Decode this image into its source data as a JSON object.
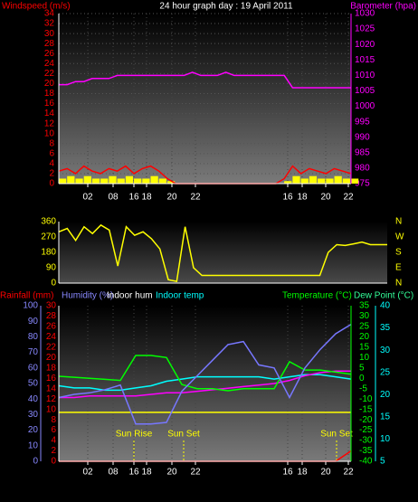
{
  "chart_data": [
    {
      "type": "line",
      "title": "24 hour graph day : 19 April 2011",
      "y_label": "Windspeed (m/s)",
      "y2_label": "Barometer (hpa)",
      "xtick_labels": [
        "02",
        "08",
        "16",
        "18",
        "20",
        "22",
        "16",
        "18",
        "20",
        "22"
      ],
      "ylim": [
        0,
        34
      ],
      "yticks": [
        0,
        2,
        4,
        6,
        8,
        10,
        12,
        14,
        16,
        18,
        20,
        22,
        24,
        26,
        28,
        30,
        32,
        34
      ],
      "y2lim": [
        975,
        1030
      ],
      "y2ticks": [
        975,
        980,
        985,
        990,
        995,
        1000,
        1005,
        1010,
        1015,
        1020,
        1025,
        1030
      ],
      "grid": true,
      "y_color": "#ff0000",
      "y2_color": "#ff00ff",
      "series": [
        {
          "color": "#ffff00",
          "kind": "bar",
          "values": [
            1,
            1.5,
            1,
            1.5,
            1,
            1,
            1.5,
            1,
            1.5,
            1,
            1,
            1.5,
            1,
            0.5,
            0,
            0,
            0,
            0,
            0,
            0,
            0,
            0,
            0,
            0,
            0,
            0,
            0,
            0.5,
            1.5,
            1,
            1.5,
            1,
            1,
            1.5,
            1,
            1
          ]
        },
        {
          "color": "#ff0000",
          "values": [
            2.5,
            3,
            2,
            3.5,
            2.5,
            2,
            3,
            2.5,
            3.5,
            2,
            3,
            3.5,
            2.5,
            1,
            0,
            0,
            0,
            0,
            0,
            0,
            0,
            0,
            0,
            0,
            0,
            0,
            0,
            1,
            3.5,
            2,
            3,
            2.5,
            2,
            3,
            2.5,
            2
          ]
        },
        {
          "color": "#ff00ff",
          "axis": "y2",
          "values": [
            1007,
            1007,
            1008,
            1008,
            1009,
            1009,
            1009,
            1010,
            1010,
            1010,
            1010,
            1010,
            1010,
            1010,
            1010,
            1010,
            1011,
            1010,
            1010,
            1010,
            1011,
            1010,
            1010,
            1010,
            1010,
            1010,
            1010,
            1010,
            1006,
            1006,
            1006,
            1006,
            1006,
            1006,
            1006,
            1006
          ]
        }
      ]
    },
    {
      "type": "line",
      "ylim": [
        0,
        360
      ],
      "yticks": [
        0,
        90,
        180,
        270,
        360
      ],
      "compass_labels": [
        "N",
        "W",
        "S",
        "E",
        "N"
      ],
      "y_color": "#ffff00",
      "series": [
        {
          "color": "#ffff00",
          "values": [
            300,
            320,
            250,
            330,
            290,
            340,
            310,
            100,
            330,
            280,
            300,
            260,
            200,
            20,
            10,
            330,
            90,
            45,
            45,
            45,
            45,
            45,
            45,
            45,
            45,
            45,
            45,
            45,
            45,
            45,
            45,
            45,
            180,
            225,
            220,
            230,
            240,
            225,
            225,
            225
          ]
        }
      ]
    },
    {
      "type": "line",
      "y_label": "Rainfall (mm)",
      "humidity_label": "Humidity (%)",
      "indoor_hum_label": "Indoor hum",
      "indoor_temp_label": "Indoor temp",
      "y2_label": "Temperature (°C)",
      "y3_label": "Dew Point (°C)",
      "xtick_labels": [
        "02",
        "08",
        "16",
        "18",
        "20",
        "22",
        "16",
        "18",
        "20",
        "22"
      ],
      "ylim": [
        0,
        30
      ],
      "yticks": [
        0,
        2,
        4,
        6,
        8,
        10,
        12,
        14,
        16,
        18,
        20,
        22,
        24,
        26,
        28,
        30
      ],
      "humidity_lim": [
        0,
        100
      ],
      "humidity_ticks": [
        0,
        10,
        20,
        30,
        40,
        50,
        60,
        70,
        80,
        90,
        100
      ],
      "y2lim": [
        -40,
        35
      ],
      "y2ticks": [
        -40,
        -35,
        -30,
        -25,
        -20,
        -15,
        -10,
        -5,
        0,
        5,
        10,
        15,
        20,
        25,
        30,
        35
      ],
      "y3lim": [
        5,
        40
      ],
      "y3ticks": [
        5,
        10,
        15,
        20,
        25,
        30,
        35,
        40
      ],
      "annotations": [
        "Sun Rise",
        "Sun Set",
        "Sun Set"
      ],
      "series": [
        {
          "color": "#ffff00",
          "axis": "y3",
          "values": [
            16,
            16,
            16,
            16,
            16,
            16,
            16,
            16,
            16,
            16,
            16,
            16,
            16,
            16,
            16,
            16,
            16,
            16,
            16,
            16
          ]
        },
        {
          "color": "#00ffff",
          "axis": "y3",
          "values": [
            22,
            21.5,
            21.5,
            21,
            21,
            21.5,
            22,
            23,
            23.5,
            24,
            24,
            24,
            24,
            24,
            23.5,
            24,
            24.5,
            24.5,
            24,
            23.5
          ]
        },
        {
          "color": "#ff00ff",
          "axis": "humidity",
          "values": [
            41,
            41,
            42,
            42,
            42,
            42,
            43,
            44,
            44,
            45,
            46,
            47,
            48,
            49,
            50,
            52,
            55,
            57,
            58,
            58
          ]
        },
        {
          "color": "#00ff00",
          "axis": "y2",
          "values": [
            1,
            0.5,
            0,
            -0.5,
            -1,
            11,
            11,
            10,
            -3,
            -5,
            -5,
            -6,
            -5,
            -5,
            -5,
            8,
            4,
            4,
            3,
            2
          ]
        },
        {
          "color": "#7777ff",
          "axis": "humidity",
          "values": [
            41,
            43,
            44,
            46,
            49,
            24,
            24,
            25,
            45,
            55,
            65,
            75,
            77,
            62,
            60,
            41,
            60,
            72,
            82,
            88
          ]
        },
        {
          "color": "#ff0000",
          "values": [
            0,
            0,
            0,
            0,
            0,
            0,
            0,
            0,
            0,
            0,
            0,
            0,
            0,
            0,
            0,
            0,
            0,
            0,
            0,
            2
          ]
        }
      ]
    }
  ]
}
